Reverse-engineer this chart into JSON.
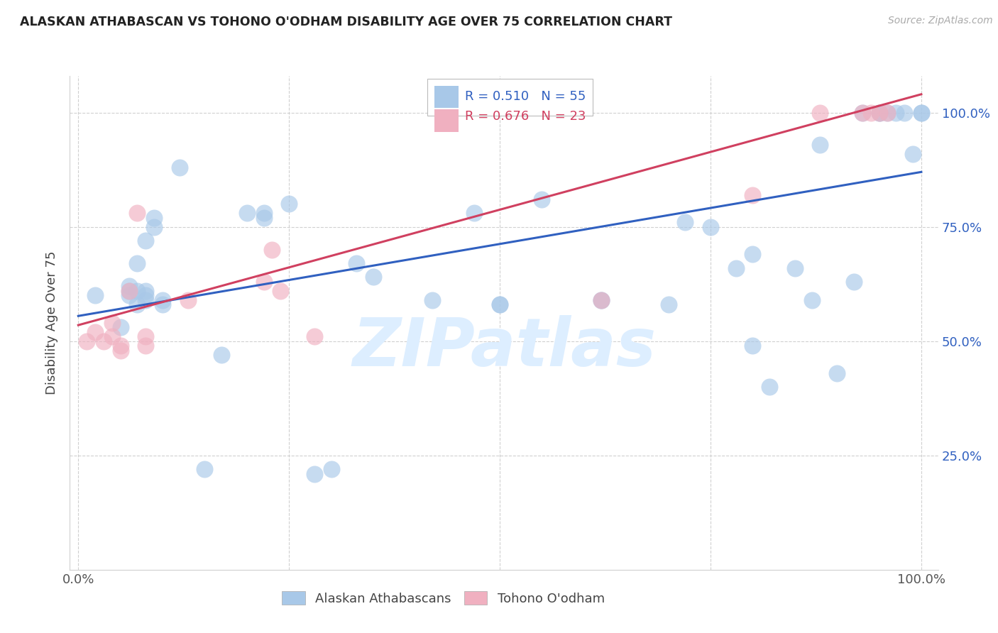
{
  "title": "ALASKAN ATHABASCAN VS TOHONO O'ODHAM DISABILITY AGE OVER 75 CORRELATION CHART",
  "source": "Source: ZipAtlas.com",
  "ylabel": "Disability Age Over 75",
  "legend_blue_R": "R = 0.510",
  "legend_blue_N": "N = 55",
  "legend_pink_R": "R = 0.676",
  "legend_pink_N": "N = 23",
  "legend_blue_label": "Alaskan Athabascans",
  "legend_pink_label": "Tohono O'odham",
  "blue_color": "#a8c8e8",
  "pink_color": "#f0b0c0",
  "blue_line_color": "#3060c0",
  "pink_line_color": "#d04060",
  "right_label_color": "#3060c0",
  "watermark_color": "#ddeeff",
  "watermark": "ZIPatlas",
  "blue_x": [
    0.02,
    0.05,
    0.06,
    0.06,
    0.06,
    0.07,
    0.07,
    0.07,
    0.08,
    0.08,
    0.08,
    0.08,
    0.09,
    0.09,
    0.1,
    0.1,
    0.12,
    0.15,
    0.17,
    0.2,
    0.22,
    0.22,
    0.25,
    0.28,
    0.3,
    0.33,
    0.35,
    0.42,
    0.47,
    0.5,
    0.5,
    0.55,
    0.62,
    0.62,
    0.7,
    0.72,
    0.75,
    0.78,
    0.8,
    0.8,
    0.82,
    0.85,
    0.87,
    0.88,
    0.9,
    0.92,
    0.93,
    0.95,
    0.95,
    0.96,
    0.97,
    0.98,
    0.99,
    1.0,
    1.0
  ],
  "blue_y": [
    0.6,
    0.53,
    0.6,
    0.61,
    0.62,
    0.58,
    0.61,
    0.67,
    0.59,
    0.6,
    0.61,
    0.72,
    0.77,
    0.75,
    0.58,
    0.59,
    0.88,
    0.22,
    0.47,
    0.78,
    0.77,
    0.78,
    0.8,
    0.21,
    0.22,
    0.67,
    0.64,
    0.59,
    0.78,
    0.58,
    0.58,
    0.81,
    0.59,
    0.59,
    0.58,
    0.76,
    0.75,
    0.66,
    0.49,
    0.69,
    0.4,
    0.66,
    0.59,
    0.93,
    0.43,
    0.63,
    1.0,
    1.0,
    1.0,
    1.0,
    1.0,
    1.0,
    0.91,
    1.0,
    1.0
  ],
  "pink_x": [
    0.01,
    0.02,
    0.03,
    0.04,
    0.04,
    0.05,
    0.05,
    0.06,
    0.07,
    0.08,
    0.08,
    0.13,
    0.22,
    0.23,
    0.24,
    0.28,
    0.62,
    0.8,
    0.88,
    0.93,
    0.94,
    0.95,
    0.96
  ],
  "pink_y": [
    0.5,
    0.52,
    0.5,
    0.51,
    0.54,
    0.48,
    0.49,
    0.61,
    0.78,
    0.51,
    0.49,
    0.59,
    0.63,
    0.7,
    0.61,
    0.51,
    0.59,
    0.82,
    1.0,
    1.0,
    1.0,
    1.0,
    1.0
  ],
  "blue_trend_x": [
    0.0,
    1.0
  ],
  "blue_trend_y": [
    0.555,
    0.87
  ],
  "pink_trend_x": [
    0.0,
    1.0
  ],
  "pink_trend_y": [
    0.535,
    1.04
  ],
  "ylim_min": 0.0,
  "ylim_max": 1.08,
  "xlim_min": -0.01,
  "xlim_max": 1.02,
  "right_yticks": [
    0.25,
    0.5,
    0.75,
    1.0
  ],
  "right_yticklabels": [
    "25.0%",
    "50.0%",
    "75.0%",
    "100.0%"
  ],
  "xtick_positions": [
    0.0,
    0.25,
    0.5,
    0.75,
    1.0
  ],
  "xtick_labels": [
    "0.0%",
    "",
    "",
    "",
    "100.0%"
  ],
  "grid_color": "#d0d0d0",
  "spine_color": "#d0d0d0"
}
